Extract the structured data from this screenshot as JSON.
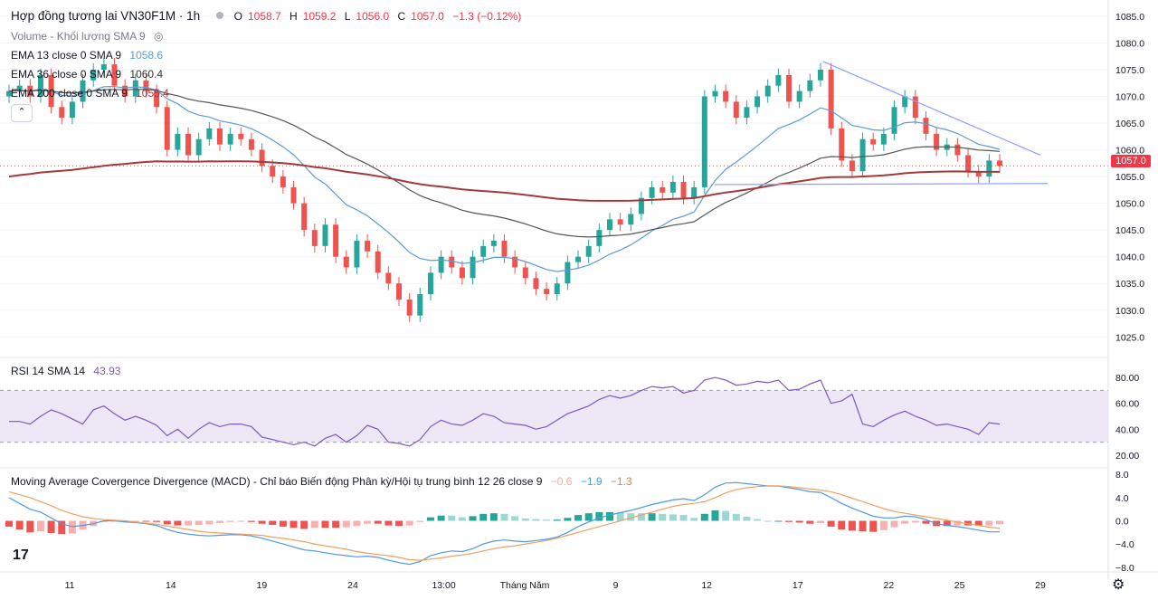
{
  "header": {
    "symbol_title": "Hợp đồng tương lai VN30F1M · 1h",
    "ohlc": {
      "o_label": "O",
      "o": "1058.7",
      "h_label": "H",
      "h": "1059.2",
      "l_label": "L",
      "l": "1056.0",
      "c_label": "C",
      "c": "1057.0",
      "change": "−1.3 (−0.12%)"
    },
    "volume_label": "Volume - Khối lượng SMA 9",
    "ema13_label": "EMA 13 close 0 SMA 9",
    "ema13_value": "1058.6",
    "ema36_label": "EMA 36 close 0 SMA 9",
    "ema36_value": "1060.4",
    "ema200_label": "EMA 200 close 0 SMA 9",
    "ema200_value": "1055.4",
    "collapse_icon": "chevron-up-icon",
    "eye_icon": "eye-off-icon",
    "current_price_tag": "1057.0"
  },
  "rsi_panel": {
    "label": "RSI 14 SMA 14",
    "value": "43.93"
  },
  "macd_panel": {
    "label": "Moving Average Covergence Divergence (MACD) - Chỉ báo Biến động Phân kỳ/Hội tụ trung bình 12 26 close 9",
    "hist_value": "−0.6",
    "macd_value": "−1.9",
    "signal_value": "−1.3"
  },
  "colors": {
    "up": "#26a69a",
    "down": "#ef5350",
    "ema13": "#5b9bd5",
    "ema36": "#555555",
    "ema200": "#a33a3a",
    "rsi": "#7e57c2",
    "rsi_band": "#ede7f6",
    "macd": "#4c9ae0",
    "signal": "#f0a060",
    "hist_up": "#26a69a",
    "hist_down": "#ef5350",
    "trend": "#8c9eff"
  },
  "chart_data": {
    "type": "candlestick",
    "title": "Hợp đồng tương lai VN30F1M · 1h",
    "x_ticks": [
      "11",
      "14",
      "19",
      "24",
      "13:00",
      "Tháng Năm",
      "9",
      "12",
      "17",
      "22",
      "25",
      "29"
    ],
    "price_axis": {
      "ticks": [
        "1085.0",
        "1080.0",
        "1075.0",
        "1070.0",
        "1065.0",
        "1060.0",
        "1055.0",
        "1050.0",
        "1045.0",
        "1040.0",
        "1035.0",
        "1030.0",
        "1025.0"
      ],
      "ylim": [
        1022,
        1086
      ]
    },
    "rsi_axis": {
      "ticks": [
        "80.00",
        "60.00",
        "40.00",
        "20.00"
      ],
      "band": [
        30,
        70
      ]
    },
    "macd_axis": {
      "ticks": [
        "8.0",
        "4.0",
        "0.0",
        "−4.0",
        "−8.0"
      ],
      "ylim": [
        -8.5,
        8.5
      ]
    },
    "close": [
      1071,
      1072,
      1070,
      1074,
      1068,
      1066,
      1069,
      1073,
      1075,
      1076,
      1072,
      1070,
      1073,
      1071,
      1068,
      1060,
      1063,
      1059,
      1062,
      1064,
      1061,
      1063,
      1062,
      1060,
      1057,
      1055,
      1053,
      1050,
      1045,
      1042,
      1046,
      1040,
      1038,
      1043,
      1041,
      1037,
      1035,
      1032,
      1029,
      1033,
      1037,
      1040,
      1038,
      1036,
      1040,
      1042,
      1043,
      1040,
      1038,
      1036,
      1034,
      1033,
      1035,
      1039,
      1040,
      1042,
      1045,
      1047,
      1046,
      1048,
      1051,
      1053,
      1052,
      1054,
      1051,
      1053,
      1070,
      1071,
      1069,
      1066,
      1068,
      1070,
      1072,
      1074,
      1069,
      1071,
      1073,
      1075,
      1064,
      1058,
      1056,
      1062,
      1061,
      1063,
      1068,
      1070,
      1066,
      1063,
      1060,
      1061,
      1059,
      1056,
      1055,
      1058,
      1057
    ],
    "rsi": [
      46,
      46,
      44,
      50,
      55,
      52,
      48,
      44,
      55,
      58,
      52,
      47,
      50,
      47,
      43,
      35,
      40,
      33,
      40,
      45,
      42,
      44,
      44,
      42,
      34,
      32,
      30,
      28,
      30,
      27,
      33,
      36,
      30,
      35,
      43,
      40,
      30,
      29,
      27,
      32,
      42,
      47,
      44,
      43,
      47,
      52,
      50,
      45,
      44,
      43,
      40,
      42,
      47,
      52,
      55,
      58,
      63,
      66,
      64,
      66,
      70,
      73,
      72,
      73,
      68,
      70,
      78,
      80,
      78,
      74,
      75,
      77,
      76,
      78,
      70,
      71,
      75,
      78,
      60,
      62,
      67,
      44,
      42,
      47,
      51,
      54,
      50,
      47,
      43,
      44,
      42,
      40,
      36,
      45,
      44
    ],
    "macd": [
      4,
      3,
      2,
      1.5,
      0.5,
      -0.5,
      -1,
      -0.8,
      -0.5,
      0,
      0,
      -0.2,
      -0.3,
      -0.5,
      -0.8,
      -1.5,
      -2,
      -2.3,
      -2.5,
      -2.6,
      -2.5,
      -2.4,
      -2.4,
      -2.6,
      -3,
      -3.5,
      -4,
      -4.5,
      -5,
      -5.2,
      -5.5,
      -5.8,
      -6,
      -6.2,
      -6.1,
      -6.3,
      -6.8,
      -7.2,
      -7.5,
      -7.0,
      -6.0,
      -5.5,
      -5.2,
      -5.3,
      -4.8,
      -4.0,
      -3.5,
      -3.3,
      -3.5,
      -3.6,
      -3.4,
      -3.2,
      -2.8,
      -2.0,
      -1.0,
      -0.2,
      0.5,
      1.0,
      1.4,
      1.8,
      2.3,
      2.8,
      3.2,
      3.6,
      3.8,
      3.5,
      4.5,
      5.8,
      6.5,
      6.6,
      6.4,
      6.2,
      6.0,
      6.0,
      5.7,
      5.4,
      5.0,
      4.9,
      4.0,
      3.0,
      2.2,
      1.5,
      0.8,
      0.5,
      0.5,
      0.8,
      0.7,
      0.2,
      -0.5,
      -0.8,
      -1.0,
      -1.3,
      -1.6,
      -1.9,
      -1.9
    ],
    "signal": [
      5,
      4.5,
      4,
      3.3,
      2.6,
      1.8,
      1.2,
      0.7,
      0.4,
      0.2,
      0.1,
      0,
      -0.2,
      -0.4,
      -0.6,
      -0.9,
      -1.2,
      -1.5,
      -1.8,
      -2.0,
      -2.1,
      -2.2,
      -2.3,
      -2.4,
      -2.5,
      -2.8,
      -3.0,
      -3.3,
      -3.6,
      -4.0,
      -4.3,
      -4.6,
      -4.9,
      -5.3,
      -5.6,
      -5.8,
      -6.0,
      -6.3,
      -6.7,
      -6.8,
      -6.6,
      -6.4,
      -6.1,
      -5.9,
      -5.6,
      -5.2,
      -4.8,
      -4.5,
      -4.3,
      -4.0,
      -3.7,
      -3.4,
      -3.0,
      -2.5,
      -2.0,
      -1.5,
      -1.0,
      -0.5,
      0.0,
      0.5,
      1.0,
      1.5,
      2.0,
      2.5,
      2.8,
      3.0,
      3.3,
      4.0,
      4.8,
      5.4,
      5.7,
      5.9,
      6.0,
      6.0,
      5.9,
      5.7,
      5.5,
      5.3,
      5.0,
      4.5,
      3.9,
      3.3,
      2.7,
      2.1,
      1.6,
      1.3,
      1.0,
      0.7,
      0.4,
      0.1,
      -0.2,
      -0.5,
      -0.8,
      -1.1,
      -1.3
    ]
  }
}
